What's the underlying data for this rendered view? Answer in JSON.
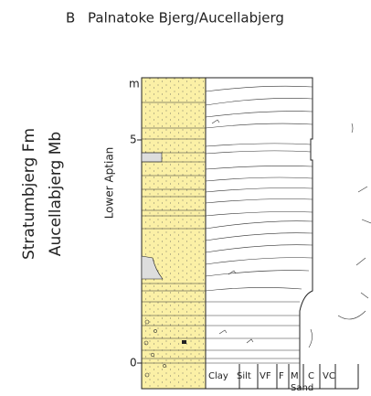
{
  "header": {
    "label": "B",
    "title": "Palnatoke Bjerg/Aucellabjerg"
  },
  "log": {
    "unit": "m",
    "depth_labels": [
      "5",
      "0"
    ]
  },
  "stratigraphy": {
    "formation": "Stratumbjerg Fm",
    "member": "Aucellabjerg Mb",
    "stage": "Lower Aptian"
  },
  "grain_size": {
    "classes": [
      "Clay",
      "Silt",
      "VF",
      "F",
      "M",
      "C",
      "VC"
    ],
    "group_label": "Sand"
  }
}
